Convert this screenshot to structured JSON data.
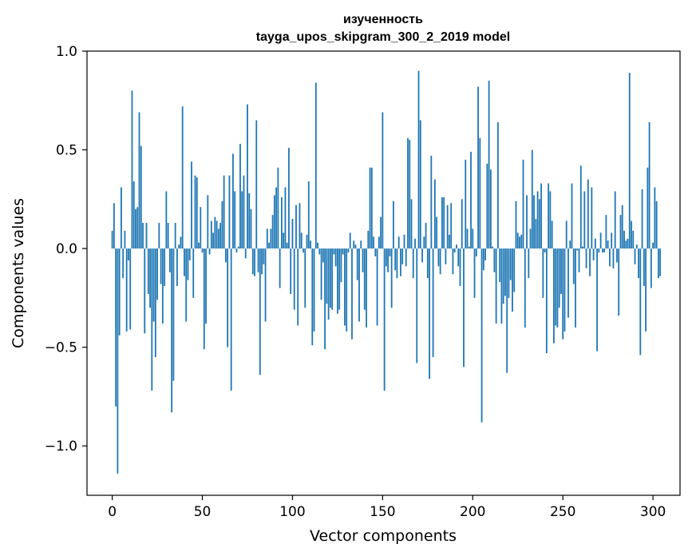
{
  "chart_data": {
    "type": "bar",
    "title": "изученность",
    "subtitle": "tayga_upos_skipgram_300_2_2019 model",
    "xlabel": "Vector components",
    "ylabel": "Components values",
    "xlim": [
      -14,
      315
    ],
    "ylim": [
      -1.25,
      1.0
    ],
    "xticks": [
      0,
      50,
      100,
      150,
      200,
      250,
      300
    ],
    "yticks": [
      -1.0,
      -0.5,
      0.0,
      0.5,
      1.0
    ],
    "xtick_labels": [
      "0",
      "50",
      "100",
      "150",
      "200",
      "250",
      "300"
    ],
    "ytick_labels": [
      "−1.0",
      "−0.5",
      "0.0",
      "0.5",
      "1.0"
    ],
    "grid": false,
    "color": "#1f77b4",
    "x_start": 0,
    "values": [
      0.09,
      0.23,
      -0.8,
      -1.14,
      -0.44,
      0.31,
      -0.15,
      0.09,
      -0.42,
      -0.06,
      -0.41,
      0.8,
      0.34,
      0.2,
      0.21,
      0.69,
      0.52,
      0.13,
      -0.43,
      0.13,
      -0.23,
      -0.3,
      -0.72,
      -0.37,
      -0.55,
      -0.26,
      0.13,
      -0.18,
      -0.38,
      -0.19,
      0.29,
      0.13,
      -0.12,
      -0.83,
      -0.67,
      0.13,
      -0.19,
      0.02,
      0.06,
      0.72,
      -0.14,
      -0.37,
      -0.16,
      -0.06,
      0.44,
      -0.25,
      0.37,
      0.36,
      0.03,
      0.21,
      -0.02,
      -0.51,
      -0.38,
      0.27,
      -0.03,
      0.14,
      0.08,
      0.16,
      0.14,
      0.1,
      0.13,
      0.24,
      0.37,
      -0.07,
      -0.5,
      0.37,
      -0.72,
      0.48,
      0.29,
      -0.02,
      0.01,
      0.53,
      0.29,
      0.37,
      -0.05,
      0.73,
      0.28,
      0.2,
      -0.13,
      -0.14,
      0.65,
      -0.12,
      -0.64,
      -0.13,
      -0.08,
      -0.37,
      0.1,
      0.03,
      0.1,
      0.17,
      0.27,
      0.31,
      0.41,
      -0.2,
      0.26,
      0.08,
      0.31,
      0.03,
      0.51,
      -0.23,
      0.15,
      -0.31,
      0.22,
      -0.39,
      0.23,
      0.08,
      -0.02,
      -0.3,
      0.07,
      0.34,
      0.04,
      -0.49,
      -0.42,
      0.84,
      0.03,
      -0.03,
      -0.26,
      -0.07,
      -0.51,
      -0.28,
      -0.36,
      -0.3,
      -0.31,
      -0.03,
      -0.09,
      -0.33,
      -0.31,
      -0.17,
      -0.03,
      -0.39,
      -0.42,
      -0.02,
      0.08,
      -0.46,
      0.04,
      0.02,
      -0.16,
      -0.37,
      0.04,
      -0.12,
      -0.31,
      -0.4,
      0.09,
      0.41,
      0.41,
      0.06,
      -0.04,
      -0.39,
      0.06,
      0.16,
      0.69,
      -0.72,
      -0.09,
      -0.12,
      -0.04,
      -0.3,
      0.24,
      -0.11,
      -0.15,
      0.06,
      -0.14,
      -0.08,
      0.07,
      -0.09,
      0.56,
      0.55,
      0.25,
      -0.15,
      0.05,
      -0.58,
      0.9,
      0.65,
      -0.07,
      0.06,
      0.13,
      -0.15,
      -0.66,
      0.47,
      -0.55,
      0.35,
      0.16,
      -0.09,
      -0.13,
      0.26,
      0.26,
      -0.08,
      0.22,
      0.07,
      0.23,
      -0.13,
      -0.02,
      0.02,
      -0.09,
      -0.19,
      0.25,
      -0.6,
      0.45,
      0.1,
      0.01,
      0.49,
      0.1,
      -0.25,
      -0.04,
      0.82,
      0.56,
      -0.88,
      -0.11,
      -0.06,
      0.43,
      0.85,
      0.4,
      0.01,
      -0.12,
      -0.38,
      0.64,
      -0.17,
      -0.38,
      -0.28,
      -0.24,
      -0.63,
      -0.25,
      -0.16,
      -0.32,
      -0.22,
      0.24,
      0.08,
      0.06,
      0.07,
      0.45,
      -0.4,
      0.27,
      -0.15,
      0.1,
      0.5,
      0.27,
      0.15,
      0.29,
      0.25,
      0.33,
      -0.25,
      -0.02,
      -0.53,
      0.33,
      0.29,
      0.14,
      -0.48,
      -0.39,
      -0.4,
      -0.3,
      -0.23,
      -0.46,
      -0.42,
      0.14,
      -0.35,
      0.04,
      0.33,
      -0.18,
      -0.4,
      -0.01,
      -0.12,
      0.42,
      0.01,
      0.29,
      -0.1,
      0.35,
      -0.14,
      0.31,
      -0.06,
      0.05,
      -0.52,
      -0.02,
      0.08,
      -0.02,
      -0.02,
      0.17,
      0.04,
      -0.09,
      0.08,
      -0.1,
      0.29,
      -0.07,
      -0.34,
      0.17,
      0.22,
      0.09,
      0.04,
      0.05,
      0.89,
      0.14,
      0.09,
      -0.08,
      0.02,
      -0.15,
      -0.54,
      0.3,
      -0.19,
      -0.42,
      0.41,
      0.64,
      -0.2,
      0.03,
      0.31,
      0.24,
      -0.15,
      -0.14
    ]
  }
}
